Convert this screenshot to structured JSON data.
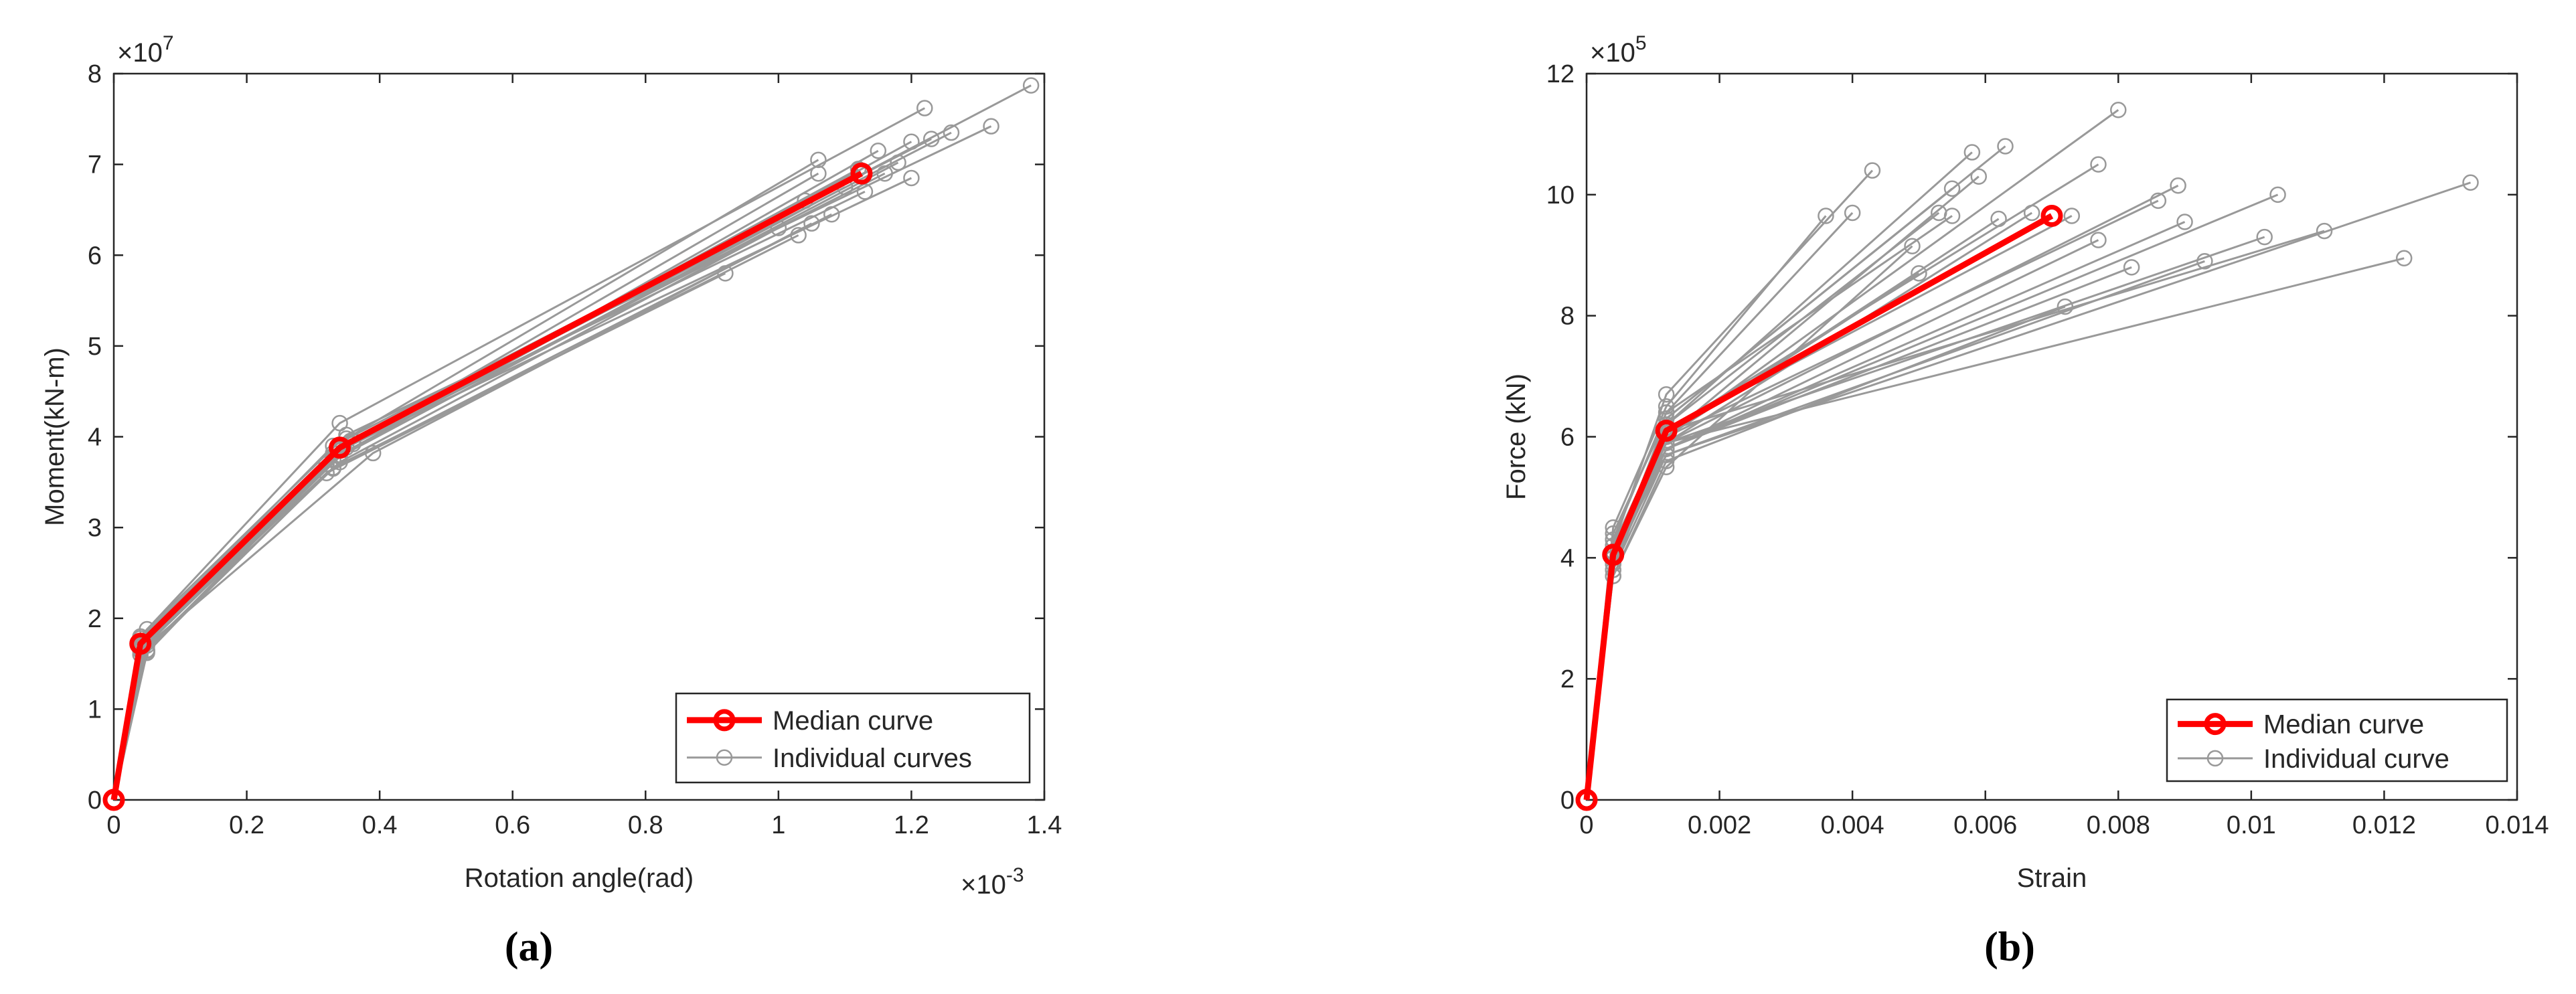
{
  "chart_data": [
    {
      "type": "line",
      "panel": "a",
      "panel_label": "(a)",
      "xlabel": "Rotation angle(rad)",
      "ylabel": "Moment(kN-m)",
      "x_exponent": "×10",
      "x_exponent_power": "-3",
      "y_exponent": "×10",
      "y_exponent_power": "7",
      "xlim": [
        0,
        1.4
      ],
      "ylim": [
        0,
        8
      ],
      "xticks": [
        0,
        0.2,
        0.4,
        0.6,
        0.8,
        1,
        1.2,
        1.4
      ],
      "xtick_labels": [
        "0",
        "0.2",
        "0.4",
        "0.6",
        "0.8",
        "1",
        "1.2",
        "1.4"
      ],
      "yticks": [
        0,
        1,
        2,
        3,
        4,
        5,
        6,
        7,
        8
      ],
      "ytick_labels": [
        "0",
        "1",
        "2",
        "3",
        "4",
        "5",
        "6",
        "7",
        "8"
      ],
      "legend": {
        "position": "bottom-right",
        "entries": [
          {
            "label": "Median curve",
            "color": "#ff0000",
            "style": "median"
          },
          {
            "label": "Individual curves",
            "color": "#999999",
            "style": "individual"
          }
        ]
      },
      "median": {
        "name": "Median curve",
        "color": "#ff0000",
        "points": [
          [
            0,
            0
          ],
          [
            0.04,
            1.72
          ],
          [
            0.34,
            3.88
          ],
          [
            1.125,
            6.9
          ]
        ]
      },
      "individual": {
        "name": "Individual curves",
        "color": "#999999",
        "curves": [
          [
            [
              0,
              0
            ],
            [
              0.04,
              1.72
            ],
            [
              0.34,
              3.88
            ],
            [
              1.38,
              7.87
            ]
          ],
          [
            [
              0,
              0
            ],
            [
              0.04,
              1.8
            ],
            [
              0.34,
              4.15
            ],
            [
              1.22,
              7.62
            ]
          ],
          [
            [
              0,
              0
            ],
            [
              0.05,
              1.88
            ],
            [
              0.35,
              4.02
            ],
            [
              1.32,
              7.42
            ]
          ],
          [
            [
              0,
              0
            ],
            [
              0.04,
              1.7
            ],
            [
              0.36,
              3.95
            ],
            [
              1.26,
              7.35
            ]
          ],
          [
            [
              0,
              0
            ],
            [
              0.04,
              1.75
            ],
            [
              0.33,
              3.9
            ],
            [
              1.23,
              7.28
            ]
          ],
          [
            [
              0,
              0
            ],
            [
              0.05,
              1.65
            ],
            [
              0.34,
              3.8
            ],
            [
              1.2,
              7.25
            ]
          ],
          [
            [
              0,
              0
            ],
            [
              0.04,
              1.68
            ],
            [
              0.32,
              3.7
            ],
            [
              1.15,
              7.15
            ]
          ],
          [
            [
              0,
              0
            ],
            [
              0.04,
              1.78
            ],
            [
              0.35,
              3.98
            ],
            [
              1.06,
              7.05
            ]
          ],
          [
            [
              0,
              0
            ],
            [
              0.05,
              1.62
            ],
            [
              0.33,
              3.75
            ],
            [
              1.18,
              7.02
            ]
          ],
          [
            [
              0,
              0
            ],
            [
              0.04,
              1.72
            ],
            [
              0.36,
              3.92
            ],
            [
              1.12,
              6.95
            ]
          ],
          [
            [
              0,
              0
            ],
            [
              0.04,
              1.66
            ],
            [
              0.34,
              3.85
            ],
            [
              1.06,
              6.9
            ]
          ],
          [
            [
              0,
              0
            ],
            [
              0.05,
              1.74
            ],
            [
              0.35,
              3.88
            ],
            [
              1.16,
              6.9
            ]
          ],
          [
            [
              0,
              0
            ],
            [
              0.04,
              1.7
            ],
            [
              0.33,
              3.82
            ],
            [
              1.2,
              6.85
            ]
          ],
          [
            [
              0,
              0
            ],
            [
              0.04,
              1.64
            ],
            [
              0.34,
              3.78
            ],
            [
              1.1,
              6.75
            ]
          ],
          [
            [
              0,
              0
            ],
            [
              0.05,
              1.76
            ],
            [
              0.36,
              3.96
            ],
            [
              1.13,
              6.7
            ]
          ],
          [
            [
              0,
              0
            ],
            [
              0.04,
              1.68
            ],
            [
              0.34,
              3.86
            ],
            [
              1.04,
              6.6
            ]
          ],
          [
            [
              0,
              0
            ],
            [
              0.04,
              1.6
            ],
            [
              0.33,
              3.65
            ],
            [
              1.08,
              6.45
            ]
          ],
          [
            [
              0,
              0
            ],
            [
              0.05,
              1.7
            ],
            [
              0.39,
              3.82
            ],
            [
              1.05,
              6.35
            ]
          ],
          [
            [
              0,
              0
            ],
            [
              0.04,
              1.66
            ],
            [
              0.32,
              3.6
            ],
            [
              1.03,
              6.22
            ]
          ],
          [
            [
              0,
              0
            ],
            [
              0.04,
              1.72
            ],
            [
              0.34,
              3.72
            ],
            [
              1.0,
              6.3
            ]
          ],
          [
            [
              0,
              0
            ],
            [
              0.05,
              1.64
            ],
            [
              0.33,
              3.66
            ],
            [
              0.92,
              5.8
            ]
          ]
        ]
      }
    },
    {
      "type": "line",
      "panel": "b",
      "panel_label": "(b)",
      "xlabel": "Strain",
      "ylabel": "Force (kN)",
      "y_exponent": "×10",
      "y_exponent_power": "5",
      "xlim": [
        0,
        0.014
      ],
      "ylim": [
        0,
        12
      ],
      "xticks": [
        0,
        0.002,
        0.004,
        0.006,
        0.008,
        0.01,
        0.012,
        0.014
      ],
      "xtick_labels": [
        "0",
        "0.002",
        "0.004",
        "0.006",
        "0.008",
        "0.01",
        "0.012",
        "0.014"
      ],
      "yticks": [
        0,
        2,
        4,
        6,
        8,
        10,
        12
      ],
      "ytick_labels": [
        "0",
        "2",
        "4",
        "6",
        "8",
        "10",
        "12"
      ],
      "legend": {
        "position": "bottom-right",
        "entries": [
          {
            "label": "Median curve",
            "color": "#ff0000",
            "style": "median"
          },
          {
            "label": "Individual curve",
            "color": "#999999",
            "style": "individual"
          }
        ]
      },
      "median": {
        "name": "Median curve",
        "color": "#ff0000",
        "points": [
          [
            0,
            0
          ],
          [
            0.0004,
            4.05
          ],
          [
            0.0012,
            6.1
          ],
          [
            0.007,
            9.65
          ]
        ]
      },
      "individual": {
        "name": "Individual curve",
        "color": "#999999",
        "curves": [
          [
            [
              0,
              0
            ],
            [
              0.0004,
              4.2
            ],
            [
              0.0012,
              6.7
            ],
            [
              0.0043,
              10.4
            ]
          ],
          [
            [
              0,
              0
            ],
            [
              0.0004,
              4.5
            ],
            [
              0.0012,
              6.5
            ],
            [
              0.0036,
              9.65
            ]
          ],
          [
            [
              0,
              0
            ],
            [
              0.0004,
              4.3
            ],
            [
              0.0012,
              6.4
            ],
            [
              0.004,
              9.7
            ]
          ],
          [
            [
              0,
              0
            ],
            [
              0.0004,
              4.1
            ],
            [
              0.0012,
              6.2
            ],
            [
              0.0058,
              10.7
            ]
          ],
          [
            [
              0,
              0
            ],
            [
              0.0004,
              4.0
            ],
            [
              0.0012,
              6.3
            ],
            [
              0.0063,
              10.8
            ]
          ],
          [
            [
              0,
              0
            ],
            [
              0.0004,
              3.9
            ],
            [
              0.0012,
              6.0
            ],
            [
              0.008,
              11.4
            ]
          ],
          [
            [
              0,
              0
            ],
            [
              0.0004,
              4.2
            ],
            [
              0.0012,
              6.1
            ],
            [
              0.0077,
              10.5
            ]
          ],
          [
            [
              0,
              0
            ],
            [
              0.0004,
              4.0
            ],
            [
              0.0012,
              5.9
            ],
            [
              0.0089,
              10.15
            ]
          ],
          [
            [
              0,
              0
            ],
            [
              0.0004,
              4.4
            ],
            [
              0.0012,
              6.3
            ],
            [
              0.0055,
              10.1
            ]
          ],
          [
            [
              0,
              0
            ],
            [
              0.0004,
              3.8
            ],
            [
              0.0012,
              6.0
            ],
            [
              0.0059,
              10.3
            ]
          ],
          [
            [
              0,
              0
            ],
            [
              0.0004,
              4.1
            ],
            [
              0.0012,
              5.8
            ],
            [
              0.0104,
              10.0
            ]
          ],
          [
            [
              0,
              0
            ],
            [
              0.0004,
              4.0
            ],
            [
              0.0012,
              5.7
            ],
            [
              0.0133,
              10.2
            ]
          ],
          [
            [
              0,
              0
            ],
            [
              0.0004,
              3.9
            ],
            [
              0.0012,
              6.2
            ],
            [
              0.0053,
              9.7
            ]
          ],
          [
            [
              0,
              0
            ],
            [
              0.0004,
              4.3
            ],
            [
              0.0012,
              6.4
            ],
            [
              0.0055,
              9.65
            ]
          ],
          [
            [
              0,
              0
            ],
            [
              0.0004,
              4.0
            ],
            [
              0.0012,
              6.0
            ],
            [
              0.0062,
              9.6
            ]
          ],
          [
            [
              0,
              0
            ],
            [
              0.0004,
              4.1
            ],
            [
              0.0012,
              5.9
            ],
            [
              0.0067,
              9.7
            ]
          ],
          [
            [
              0,
              0
            ],
            [
              0.0004,
              4.2
            ],
            [
              0.0012,
              6.1
            ],
            [
              0.0073,
              9.65
            ]
          ],
          [
            [
              0,
              0
            ],
            [
              0.0004,
              3.7
            ],
            [
              0.0012,
              5.5
            ],
            [
              0.0049,
              9.15
            ]
          ],
          [
            [
              0,
              0
            ],
            [
              0.0004,
              4.0
            ],
            [
              0.0012,
              5.8
            ],
            [
              0.0077,
              9.25
            ]
          ],
          [
            [
              0,
              0
            ],
            [
              0.0004,
              4.1
            ],
            [
              0.0012,
              6.0
            ],
            [
              0.0086,
              9.9
            ]
          ],
          [
            [
              0,
              0
            ],
            [
              0.0004,
              3.9
            ],
            [
              0.0012,
              5.8
            ],
            [
              0.009,
              9.55
            ]
          ],
          [
            [
              0,
              0
            ],
            [
              0.0004,
              4.0
            ],
            [
              0.0012,
              5.9
            ],
            [
              0.0102,
              9.3
            ]
          ],
          [
            [
              0,
              0
            ],
            [
              0.0004,
              4.2
            ],
            [
              0.0012,
              6.1
            ],
            [
              0.0111,
              9.4
            ]
          ],
          [
            [
              0,
              0
            ],
            [
              0.0004,
              3.8
            ],
            [
              0.0012,
              5.7
            ],
            [
              0.0093,
              8.9
            ]
          ],
          [
            [
              0,
              0
            ],
            [
              0.0004,
              4.0
            ],
            [
              0.0012,
              6.0
            ],
            [
              0.005,
              8.7
            ]
          ],
          [
            [
              0,
              0
            ],
            [
              0.0004,
              3.9
            ],
            [
              0.0012,
              5.8
            ],
            [
              0.0082,
              8.8
            ]
          ],
          [
            [
              0,
              0
            ],
            [
              0.0004,
              4.1
            ],
            [
              0.0012,
              5.9
            ],
            [
              0.0123,
              8.95
            ]
          ],
          [
            [
              0,
              0
            ],
            [
              0.0004,
              3.7
            ],
            [
              0.0012,
              5.6
            ],
            [
              0.0072,
              8.15
            ]
          ]
        ]
      }
    }
  ]
}
